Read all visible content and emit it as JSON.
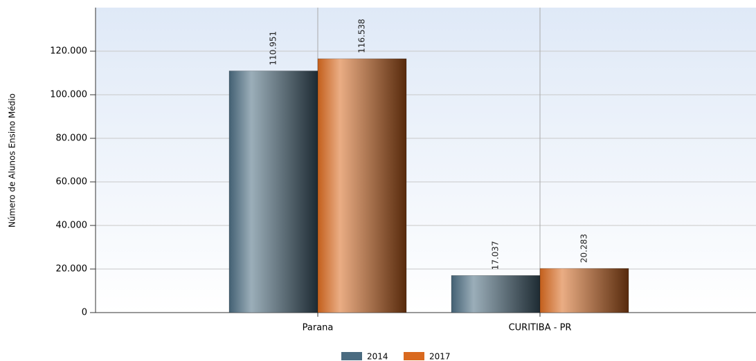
{
  "chart_data": {
    "type": "bar",
    "y_label": "Número de Alunos Ensino Médio",
    "categories": [
      "Parana",
      "CURITIBA - PR"
    ],
    "series": [
      {
        "name": "2014",
        "color": "#4a6b80",
        "values": [
          110951,
          17037
        ],
        "value_labels": [
          "110.951",
          "17.037"
        ]
      },
      {
        "name": "2017",
        "color": "#d9691f",
        "values": [
          116538,
          20283
        ],
        "value_labels": [
          "116.538",
          "20.283"
        ]
      }
    ],
    "ylim": [
      0,
      140000
    ],
    "yticks": [
      0,
      {
        "value": 20000,
        "label": "20.000"
      },
      {
        "value": 40000,
        "label": "40.000"
      },
      {
        "value": 60000,
        "label": "60.000"
      },
      {
        "value": 80000,
        "label": "80.000"
      },
      {
        "value": 100000,
        "label": "100.000"
      },
      {
        "value": 120000,
        "label": "120.000"
      }
    ],
    "grid": true,
    "legend": "bottom"
  }
}
